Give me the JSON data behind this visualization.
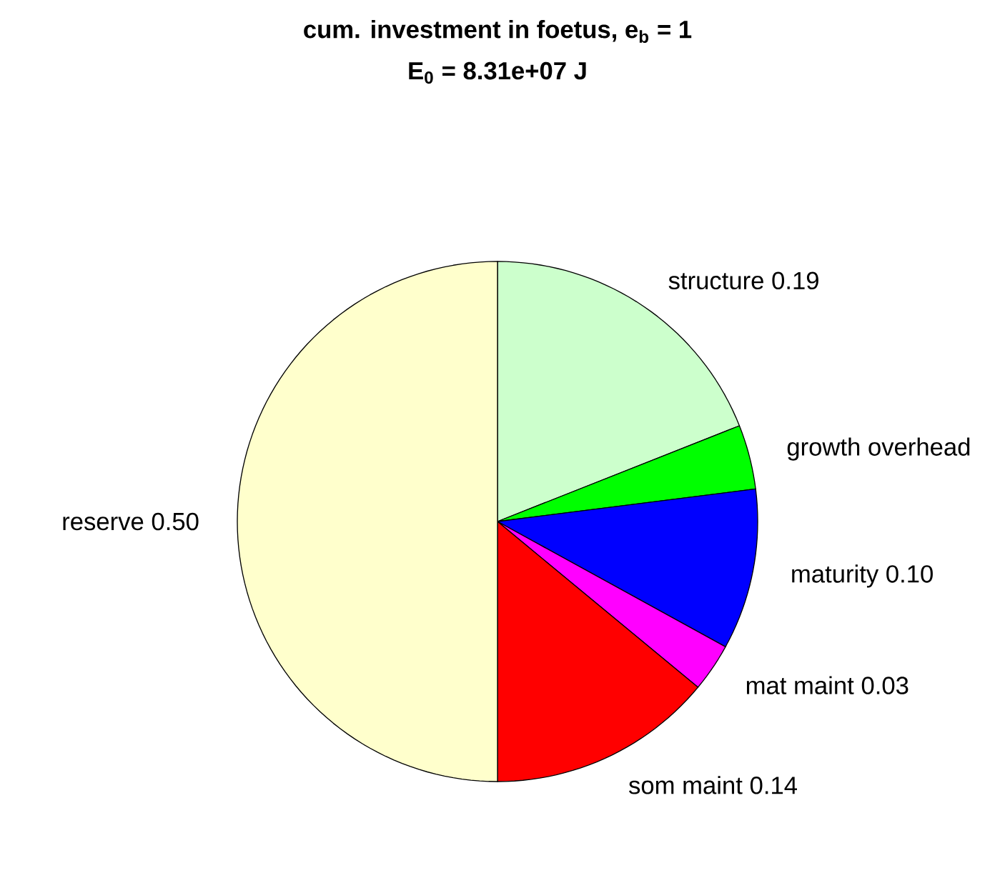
{
  "chart_data": {
    "type": "pie",
    "title": "cum. investment in foetus, e$_{b}$ = 1",
    "subtitle": "E$_{0}$ = 8.31e+07 J",
    "categories": [
      "structure",
      "growth overhead",
      "maturity",
      "mat maint",
      "som maint",
      "reserve"
    ],
    "values": [
      0.19,
      0.04,
      0.1,
      0.03,
      0.14,
      0.5
    ],
    "value_labels": [
      "0.19",
      null,
      "0.10",
      "0.03",
      "0.14",
      "0.50"
    ],
    "colors": [
      "#ccffcc",
      "#00ff00",
      "#0000ff",
      "#ff00ff",
      "#ff0000",
      "#ffffcc"
    ]
  }
}
